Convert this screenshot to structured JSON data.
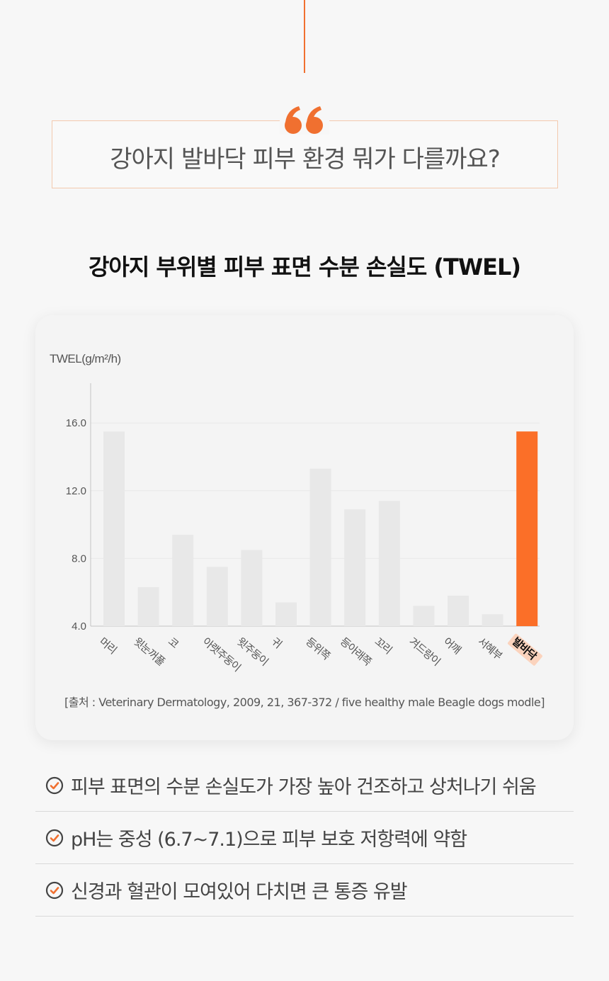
{
  "quote": {
    "text": "강아지 발바닥 피부 환경 뭐가 다를까요?"
  },
  "chart_title": "강아지 부위별 피부 표면 수분 손실도 (TWEL)",
  "chart_data": {
    "type": "bar",
    "title": "강아지 부위별 피부 표면 수분 손실도 (TWEL)",
    "ylabel": "TWEL(g/m²/h)",
    "xlabel": "",
    "ylim": [
      4.0,
      16.0
    ],
    "yticks": [
      "4.0",
      "8.0",
      "12.0",
      "16.0"
    ],
    "categories": [
      "머리",
      "윗눈꺼풀",
      "코",
      "아랫주둥이",
      "윗주둥이",
      "귀",
      "등위쪽",
      "등아래쪽",
      "꼬리",
      "겨드랑이",
      "어깨",
      "서혜부",
      "발바닥"
    ],
    "values": [
      15.5,
      6.3,
      9.4,
      7.5,
      8.5,
      5.4,
      13.3,
      10.9,
      11.4,
      5.2,
      5.8,
      4.7,
      15.5
    ],
    "highlight_index": 12,
    "colors": {
      "bar": "#e8e8e8",
      "highlight": "#fb6f28",
      "axis": "#c4c4c4",
      "grid": "#e8e8e8"
    },
    "grid": true
  },
  "source": "[출처 : Veterinary Dermatology, 2009, 21, 367-372 / five healthy male Beagle dogs modle]",
  "bullets": [
    {
      "icon": "check-circle-icon",
      "text": "피부 표면의 수분 손실도가 가장 높아 건조하고 상처나기 쉬움"
    },
    {
      "icon": "check-circle-icon",
      "text": "pH는 중성 (6.7~7.1)으로 피부 보호 저항력에 약함"
    },
    {
      "icon": "check-circle-icon",
      "text": "신경과 혈관이 모여있어 다치면 큰 통증 유발"
    }
  ],
  "accent": "#f07030"
}
